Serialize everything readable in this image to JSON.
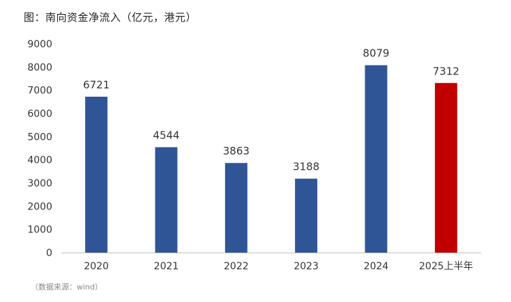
{
  "chart_data": {
    "type": "bar",
    "title": "图：南向资金净流入（亿元，港元）",
    "source": "（数据来源：wind）",
    "categories": [
      "2020",
      "2021",
      "2022",
      "2023",
      "2024",
      "2025上半年"
    ],
    "values": [
      6721,
      4544,
      3863,
      3188,
      8079,
      7312
    ],
    "data_labels": [
      "6721",
      "4544",
      "3863",
      "3188",
      "8079",
      "7312"
    ],
    "ylim": [
      0,
      9000
    ],
    "yticks": [
      "0",
      "1000",
      "2000",
      "3000",
      "4000",
      "5000",
      "6000",
      "7000",
      "8000",
      "9000"
    ],
    "grid": false,
    "legend": "none",
    "colors": {
      "bar": "#2f5597",
      "highlight": "#c00000",
      "axis": "#bfbfbf"
    },
    "highlight_index": 5
  }
}
